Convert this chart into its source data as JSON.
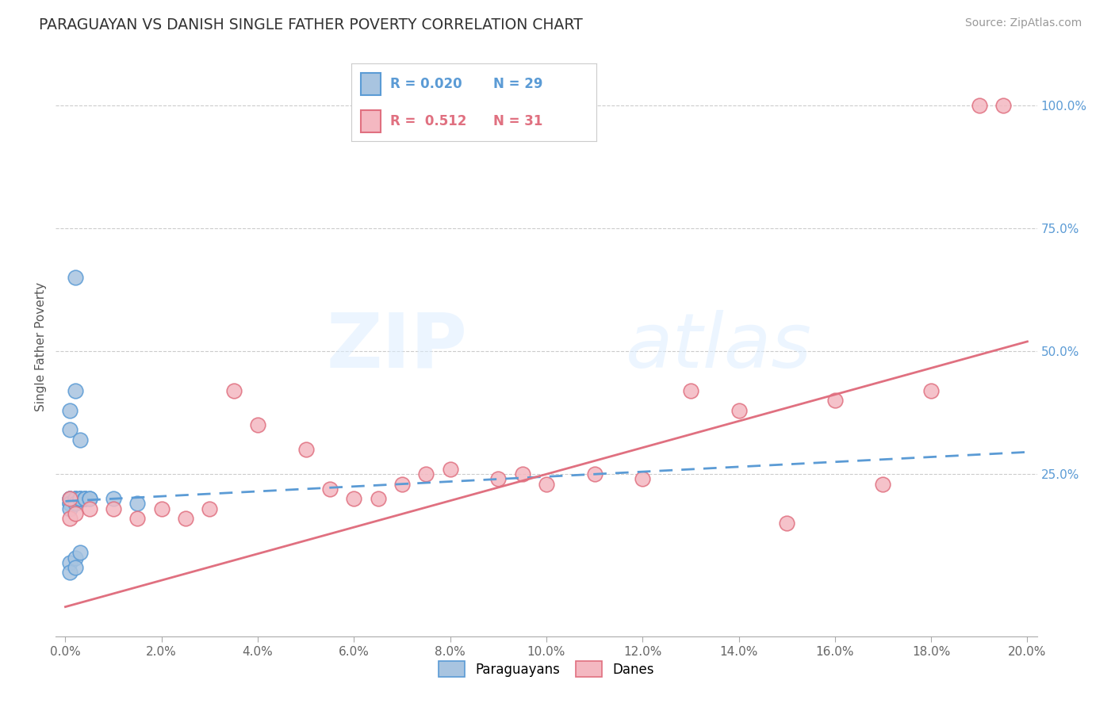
{
  "title": "PARAGUAYAN VS DANISH SINGLE FATHER POVERTY CORRELATION CHART",
  "source": "Source: ZipAtlas.com",
  "ylabel": "Single Father Poverty",
  "xlim_min": -0.002,
  "xlim_max": 0.202,
  "ylim_min": -0.08,
  "ylim_max": 1.1,
  "xtick_labels": [
    "0.0%",
    "2.0%",
    "4.0%",
    "6.0%",
    "8.0%",
    "10.0%",
    "12.0%",
    "14.0%",
    "16.0%",
    "18.0%",
    "20.0%"
  ],
  "xtick_vals": [
    0.0,
    0.02,
    0.04,
    0.06,
    0.08,
    0.1,
    0.12,
    0.14,
    0.16,
    0.18,
    0.2
  ],
  "ytick_labels": [
    "25.0%",
    "50.0%",
    "75.0%",
    "100.0%"
  ],
  "ytick_vals": [
    0.25,
    0.5,
    0.75,
    1.0
  ],
  "paraguayan_color": "#a8c4e0",
  "paraguayan_edge": "#5b9bd5",
  "danish_color": "#f4b8c1",
  "danish_edge": "#e07080",
  "paraguayan_trend_color": "#5b9bd5",
  "danish_trend_color": "#e07080",
  "R_paraguayan": 0.02,
  "N_paraguayan": 29,
  "R_danish": 0.512,
  "N_danish": 31,
  "watermark": "ZIPatlas",
  "py_trend_x0": 0.0,
  "py_trend_y0": 0.195,
  "py_trend_x1": 0.04,
  "py_trend_y1": 0.215,
  "da_trend_x0": 0.0,
  "da_trend_y0": -0.02,
  "da_trend_x1": 0.2,
  "da_trend_y1": 0.52,
  "paraguayan_x": [
    0.001,
    0.001,
    0.001,
    0.001,
    0.001,
    0.001,
    0.001,
    0.002,
    0.002,
    0.002,
    0.002,
    0.002,
    0.002,
    0.003,
    0.003,
    0.003,
    0.003,
    0.004,
    0.004,
    0.004,
    0.005,
    0.005,
    0.01,
    0.015,
    0.001,
    0.001,
    0.002,
    0.003,
    0.002
  ],
  "paraguayan_y": [
    0.2,
    0.2,
    0.19,
    0.19,
    0.18,
    0.07,
    0.05,
    0.2,
    0.2,
    0.2,
    0.19,
    0.08,
    0.06,
    0.2,
    0.2,
    0.2,
    0.09,
    0.2,
    0.2,
    0.2,
    0.2,
    0.2,
    0.2,
    0.19,
    0.38,
    0.34,
    0.42,
    0.32,
    0.65
  ],
  "danish_x": [
    0.001,
    0.005,
    0.01,
    0.015,
    0.02,
    0.025,
    0.03,
    0.035,
    0.04,
    0.05,
    0.055,
    0.06,
    0.065,
    0.07,
    0.075,
    0.08,
    0.09,
    0.095,
    0.1,
    0.11,
    0.12,
    0.13,
    0.14,
    0.15,
    0.16,
    0.17,
    0.18,
    0.19,
    0.195,
    0.001,
    0.002
  ],
  "danish_y": [
    0.2,
    0.18,
    0.18,
    0.16,
    0.18,
    0.16,
    0.18,
    0.42,
    0.35,
    0.3,
    0.22,
    0.2,
    0.2,
    0.23,
    0.25,
    0.26,
    0.24,
    0.25,
    0.23,
    0.25,
    0.24,
    0.42,
    0.38,
    0.15,
    0.4,
    0.23,
    0.42,
    1.0,
    1.0,
    0.16,
    0.17
  ]
}
